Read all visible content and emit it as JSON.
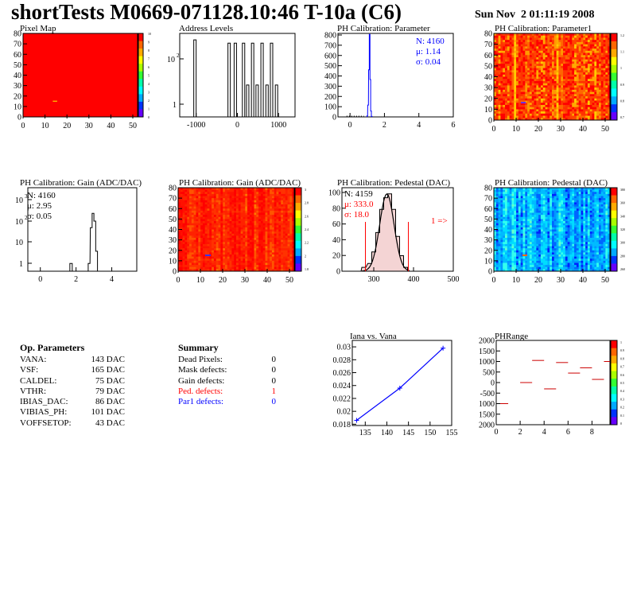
{
  "title": "shortTests M0669-071128.10:46 T-10a (C6)",
  "date": "Sun Nov  2 01:11:19 2008",
  "colors": {
    "hist_line": "#000000",
    "param_line": "#0000ff",
    "defect_red": "#ff0000",
    "defect_blue": "#0000ff",
    "map_fill": "#ff0000",
    "phrange_line": "#cc0000"
  },
  "panels": {
    "pixel_map": {
      "title": "Pixel Map",
      "yticks": [
        "80",
        "70",
        "60",
        "50",
        "40",
        "30",
        "20",
        "10",
        "0"
      ],
      "xticks": [
        "0",
        "10",
        "20",
        "30",
        "40",
        "50"
      ],
      "zticks": [
        "10",
        "9",
        "8",
        "7",
        "6",
        "5",
        "4",
        "3",
        "2",
        "1",
        "0"
      ]
    },
    "address_levels": {
      "title": "Address Levels",
      "yticks": [
        "10",
        "1"
      ],
      "ysup": "2",
      "xticks": [
        "-1000",
        "0",
        "1000"
      ]
    },
    "ph_param": {
      "title": "PH Calibration: Parameter",
      "stats": [
        "N: 4160",
        "μ: 1.14",
        "σ: 0.04"
      ],
      "yticks": [
        "800",
        "700",
        "600",
        "500",
        "400",
        "300",
        "200",
        "100",
        "0"
      ],
      "xticks": [
        "0",
        "2",
        "4",
        "6"
      ]
    },
    "ph_param1": {
      "title": "PH Calibration: Parameter1",
      "yticks": [
        "80",
        "70",
        "60",
        "50",
        "40",
        "30",
        "20",
        "10",
        "0"
      ],
      "xticks": [
        "0",
        "10",
        "20",
        "30",
        "40",
        "50"
      ],
      "zticks": [
        "1.2",
        "1.1",
        "1",
        "0.9",
        "0.8",
        "0.7"
      ]
    },
    "gain_hist": {
      "title": "PH Calibration: Gain (ADC/DAC)",
      "stats": [
        "N: 4160",
        "μ: 2.95",
        "σ: 0.05"
      ],
      "yticks": [
        "10",
        "10",
        "10",
        "1"
      ],
      "ysup": [
        "3",
        "2",
        ""
      ],
      "xticks": [
        "0",
        "2",
        "4"
      ]
    },
    "gain_map": {
      "title": "PH Calibration: Gain (ADC/DAC)",
      "yticks": [
        "80",
        "70",
        "60",
        "50",
        "40",
        "30",
        "20",
        "10",
        "0"
      ],
      "xticks": [
        "0",
        "10",
        "20",
        "30",
        "40",
        "50"
      ],
      "zticks": [
        "3",
        "2.8",
        "2.6",
        "2.4",
        "2.2",
        "2",
        "1.8"
      ]
    },
    "pedestal_hist": {
      "title": "PH Calibration: Pedestal (DAC)",
      "stats": [
        "N: 4159",
        "μ: 333.0",
        "σ: 18.0"
      ],
      "arrow_label": "1 =>",
      "yticks": [
        "100",
        "80",
        "60",
        "40",
        "20",
        "0"
      ],
      "xticks": [
        "300",
        "400",
        "500"
      ]
    },
    "pedestal_map": {
      "title": "PH Calibration: Pedestal (DAC)",
      "yticks": [
        "80",
        "70",
        "60",
        "50",
        "40",
        "30",
        "20",
        "10",
        "0"
      ],
      "xticks": [
        "0",
        "10",
        "20",
        "30",
        "40",
        "50"
      ],
      "zticks": [
        "380",
        "360",
        "340",
        "320",
        "300",
        "280",
        "260"
      ]
    },
    "iana": {
      "title": "Iana vs. Vana",
      "yticks": [
        "0.03",
        "0.028",
        "0.026",
        "0.024",
        "0.022",
        "0.02",
        "0.018"
      ],
      "xticks": [
        "135",
        "140",
        "145",
        "150",
        "155"
      ]
    },
    "phrange": {
      "title": "PHRange",
      "yticks": [
        "2000",
        "1500",
        "1000",
        "500",
        "0",
        "-500",
        "1000",
        "1500",
        "2000"
      ],
      "xticks": [
        "0",
        "2",
        "4",
        "6",
        "8"
      ],
      "zticks": [
        "1",
        "0.9",
        "0.8",
        "0.7",
        "0.6",
        "0.5",
        "0.4",
        "0.3",
        "0.2",
        "0.1",
        "0"
      ]
    }
  },
  "op_params": {
    "heading": "Op. Parameters",
    "rows": [
      {
        "name": "VANA:",
        "value": "143 DAC"
      },
      {
        "name": "VSF:",
        "value": "165 DAC"
      },
      {
        "name": "CALDEL:",
        "value": "75 DAC"
      },
      {
        "name": "VTHR:",
        "value": "79 DAC"
      },
      {
        "name": "IBIAS_DAC:",
        "value": "86 DAC"
      },
      {
        "name": "VIBIAS_PH:",
        "value": "101 DAC"
      },
      {
        "name": "VOFFSETOP:",
        "value": "43 DAC"
      }
    ]
  },
  "summary": {
    "heading": "Summary",
    "rows": [
      {
        "name": "Dead Pixels:",
        "value": "0",
        "color": "#000000"
      },
      {
        "name": "Mask defects:",
        "value": "0",
        "color": "#000000"
      },
      {
        "name": "Gain defects:",
        "value": "0",
        "color": "#000000"
      },
      {
        "name": "Ped. defects:",
        "value": "1",
        "color": "#ff0000"
      },
      {
        "name": "Par1 defects:",
        "value": "0",
        "color": "#0000ff"
      }
    ]
  },
  "chart_data": [
    {
      "type": "heatmap",
      "title": "Pixel Map",
      "xlim": [
        0,
        52
      ],
      "ylim": [
        0,
        80
      ],
      "zlim": [
        0,
        10
      ],
      "uniform_value": 10,
      "outlier": {
        "x": 14,
        "y": 15
      }
    },
    {
      "type": "bar",
      "title": "Address Levels",
      "log_y": true,
      "x": [
        -1030,
        -200,
        -50,
        150,
        250,
        370,
        480,
        600,
        720,
        830,
        950
      ],
      "values": [
        400,
        300,
        300,
        300,
        8,
        300,
        8,
        300,
        8,
        300,
        8
      ]
    },
    {
      "type": "bar",
      "title": "PH Calibration: Parameter",
      "x": [
        1.0,
        1.05,
        1.1,
        1.14,
        1.18,
        1.22,
        1.26
      ],
      "values": [
        10,
        120,
        480,
        840,
        380,
        60,
        5
      ],
      "xlim": [
        -0.7,
        6
      ],
      "ylim": [
        0,
        850
      ]
    },
    {
      "type": "heatmap",
      "title": "PH Calibration: Parameter1",
      "xlim": [
        0,
        52
      ],
      "ylim": [
        0,
        80
      ],
      "zlim": [
        0.7,
        1.2
      ]
    },
    {
      "type": "bar",
      "title": "PH Calibration: Gain (ADC/DAC)",
      "log_y": true,
      "x": [
        1.7,
        2.75,
        2.85,
        2.95,
        3.05,
        3.15
      ],
      "values": [
        1,
        1,
        30,
        100,
        50,
        3
      ],
      "xlim": [
        -0.7,
        5.4
      ]
    },
    {
      "type": "heatmap",
      "title": "PH Calibration: Gain (ADC/DAC)",
      "xlim": [
        0,
        52
      ],
      "ylim": [
        0,
        80
      ],
      "zlim": [
        1.8,
        3
      ]
    },
    {
      "type": "bar",
      "title": "PH Calibration: Pedestal (DAC)",
      "x": [
        275,
        290,
        300,
        310,
        320,
        330,
        340,
        350,
        360,
        370,
        380
      ],
      "values": [
        5,
        10,
        25,
        50,
        80,
        95,
        100,
        80,
        45,
        20,
        5
      ],
      "xlim": [
        220,
        500
      ],
      "ylim": [
        0,
        108
      ]
    },
    {
      "type": "heatmap",
      "title": "PH Calibration: Pedestal (DAC)",
      "xlim": [
        0,
        52
      ],
      "ylim": [
        0,
        80
      ],
      "zlim": [
        260,
        380
      ]
    },
    {
      "type": "line",
      "title": "Iana vs. Vana",
      "x": [
        133,
        143,
        153
      ],
      "values": [
        0.0186,
        0.0236,
        0.0298
      ],
      "xlim": [
        132,
        155
      ],
      "ylim": [
        0.0178,
        0.031
      ]
    },
    {
      "type": "scatter",
      "title": "PHRange",
      "x": [
        0,
        2,
        3,
        4,
        5,
        6,
        7,
        8,
        9
      ],
      "values": [
        -1000,
        0,
        1050,
        -300,
        950,
        450,
        700,
        150,
        1000
      ],
      "xlim": [
        0,
        9.5
      ],
      "ylim": [
        -2000,
        2000
      ]
    }
  ]
}
